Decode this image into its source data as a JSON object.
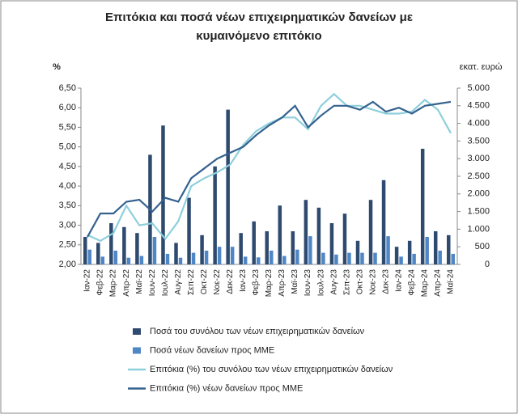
{
  "chart_data": {
    "type": "combo",
    "title": "Επιτόκια και ποσά νέων επιχειρηματικών δανείων με κυμαινόμενο επιτόκιο",
    "y_label": "%",
    "y2_label": "εκατ. ευρώ",
    "categories": [
      "Ιαν-22",
      "Φεβ-22",
      "Μαρ-22",
      "Απρ-22",
      "Μαϊ-22",
      "Ιουν-22",
      "Ιουλ-22",
      "Αυγ-22",
      "Σεπ-22",
      "Οκτ-22",
      "Νοε-22",
      "Δεκ-22",
      "Ιαν-23",
      "Φεβ-23",
      "Μαρ-23",
      "Απρ-23",
      "Μαϊ-23",
      "Ιουν-23",
      "Ιουλ-23",
      "Αυγ-23",
      "Σεπ-23",
      "Οκτ-23",
      "Νοε-23",
      "Δεκ-23",
      "Ιαν-24",
      "Φεβ-24",
      "Μαρ-24",
      "Απρ-24",
      "Μαϊ-24"
    ],
    "series": [
      {
        "name": "Ποσά του συνόλου των νέων επιχειρηματικών δανείων",
        "kind": "bar",
        "axis": "y2",
        "color": "#2e4a6e",
        "values": [
          780,
          610,
          1170,
          1060,
          890,
          3110,
          3940,
          610,
          1890,
          830,
          2780,
          4390,
          890,
          1220,
          940,
          1670,
          940,
          1830,
          1610,
          1170,
          1440,
          670,
          1830,
          2390,
          500,
          670,
          3280,
          940,
          830
        ]
      },
      {
        "name": "Ποσά νέων δανείων προς ΜΜΕ",
        "kind": "bar",
        "axis": "y2",
        "color": "#4f86c6",
        "values": [
          420,
          220,
          390,
          190,
          240,
          780,
          300,
          190,
          330,
          390,
          500,
          500,
          220,
          200,
          390,
          240,
          420,
          800,
          330,
          280,
          330,
          330,
          330,
          800,
          220,
          300,
          780,
          390,
          300
        ]
      },
      {
        "name": "Επιτόκια (%) του συνόλου των νέων επιχειρηματικών δανείων",
        "kind": "line",
        "axis": "y",
        "color": "#8ecfdc",
        "values": [
          2.75,
          2.6,
          2.8,
          3.5,
          3.0,
          3.05,
          2.65,
          3.1,
          4.0,
          4.2,
          4.35,
          4.55,
          5.05,
          5.4,
          5.6,
          5.75,
          5.75,
          5.45,
          6.05,
          6.35,
          6.05,
          6.05,
          5.95,
          5.85,
          5.85,
          5.9,
          6.2,
          5.95,
          5.35
        ]
      },
      {
        "name": "Επιτόκια (%) νέων δανείων προς ΜΜΕ",
        "kind": "line",
        "axis": "y",
        "color": "#34628f",
        "values": [
          2.7,
          3.3,
          3.3,
          3.6,
          3.65,
          3.35,
          3.7,
          3.6,
          4.2,
          4.45,
          4.7,
          4.85,
          5.0,
          5.3,
          5.55,
          5.75,
          6.05,
          5.5,
          5.8,
          6.05,
          6.05,
          5.95,
          6.15,
          5.9,
          6.0,
          5.85,
          6.05,
          6.1,
          6.15
        ]
      }
    ],
    "ylim": [
      2.0,
      6.5
    ],
    "yticks": [
      {
        "value": 2.0,
        "label": "2,00"
      },
      {
        "value": 2.5,
        "label": "2,50"
      },
      {
        "value": 3.0,
        "label": "3,00"
      },
      {
        "value": 3.5,
        "label": "3,50"
      },
      {
        "value": 4.0,
        "label": "4,00"
      },
      {
        "value": 4.5,
        "label": "4,50"
      },
      {
        "value": 5.0,
        "label": "5,00"
      },
      {
        "value": 5.5,
        "label": "5,50"
      },
      {
        "value": 6.0,
        "label": "6,00"
      },
      {
        "value": 6.5,
        "label": "6,50"
      }
    ],
    "y2lim": [
      0,
      5000
    ],
    "y2ticks": [
      0,
      500,
      {
        "value": 1000,
        "label": "1.000"
      },
      {
        "value": 1500,
        "label": "1.500"
      },
      {
        "value": 2000,
        "label": "2.000"
      },
      {
        "value": 2500,
        "label": "2.500"
      },
      {
        "value": 3000,
        "label": "3.000"
      },
      {
        "value": 3500,
        "label": "3.500"
      },
      {
        "value": 4000,
        "label": "4.000"
      },
      {
        "value": 4500,
        "label": "4.500"
      },
      {
        "value": 5000,
        "label": "5.000"
      }
    ]
  }
}
